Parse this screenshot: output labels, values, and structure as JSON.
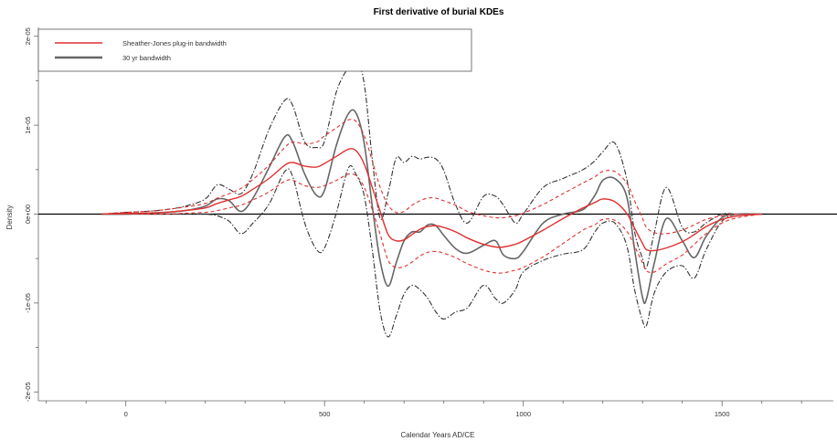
{
  "chart_data": {
    "type": "line",
    "title": "First derivative of burial KDEs",
    "xlabel": "Calendar Years AD/CE",
    "ylabel": "Density",
    "xlim": [
      -220,
      1780
    ],
    "ylim": [
      -2.1e-05,
      2.1e-05
    ],
    "x_ticks": [
      0,
      500,
      1000,
      1500
    ],
    "x_tick_labels": [
      "0",
      "500",
      "1000",
      "1500"
    ],
    "y_ticks": [
      -2e-05,
      -1e-05,
      0,
      1e-05,
      2e-05
    ],
    "y_tick_labels": [
      "-2e-05",
      "-1e-05",
      "0e+00",
      "1e-05",
      "2e-05"
    ],
    "legend_position": "top-left",
    "legend": [
      {
        "label": "Sheather-Jones plug-in bandwidth",
        "color": "#e03030"
      },
      {
        "label": "30 yr bandwidth",
        "color": "#666666"
      }
    ],
    "x": [
      -60,
      0,
      50,
      100,
      150,
      200,
      230,
      260,
      290,
      320,
      360,
      400,
      420,
      450,
      480,
      500,
      530,
      560,
      580,
      600,
      620,
      640,
      660,
      680,
      700,
      720,
      740,
      760,
      780,
      800,
      830,
      860,
      900,
      930,
      950,
      980,
      1000,
      1050,
      1100,
      1150,
      1180,
      1200,
      1230,
      1260,
      1280,
      1300,
      1310,
      1330,
      1360,
      1400,
      1430,
      1460,
      1500,
      1540,
      1600
    ],
    "series": [
      {
        "name": "Sheather-Jones plug-in bandwidth",
        "color": "#e03030",
        "style": "solid",
        "y": [
          0,
          1e-07,
          1e-07,
          2e-07,
          4e-07,
          7e-07,
          1.2e-06,
          1.6e-06,
          2e-06,
          2.8e-06,
          4e-06,
          5.5e-06,
          5.8e-06,
          5.4e-06,
          5.3e-06,
          5.7e-06,
          6.5e-06,
          7.3e-06,
          7.1e-06,
          5.6e-06,
          3e-06,
          3e-07,
          -2.3e-06,
          -3e-06,
          -2.9e-06,
          -2.3e-06,
          -1.7e-06,
          -1.4e-06,
          -1.3e-06,
          -1.5e-06,
          -2e-06,
          -2.7e-06,
          -3.4e-06,
          -3.7e-06,
          -3.7e-06,
          -3.4e-06,
          -3e-06,
          -1.8e-06,
          -5e-07,
          7e-07,
          1.3e-06,
          1.7e-06,
          1.4e-06,
          1e-07,
          -1.6e-06,
          -3.3e-06,
          -4e-06,
          -4.1e-06,
          -3.8e-06,
          -3.1e-06,
          -2.3e-06,
          -1.4e-06,
          -6e-07,
          -2e-07,
          0
        ]
      },
      {
        "name": "SJ upper",
        "color": "#e03030",
        "style": "dashed",
        "y": [
          0,
          2e-07,
          3e-07,
          5e-07,
          8e-07,
          1.2e-06,
          1.8e-06,
          2.3e-06,
          2.9e-06,
          3.9e-06,
          5.5e-06,
          7.5e-06,
          8.1e-06,
          7.9e-06,
          8.1e-06,
          8.8e-06,
          9.7e-06,
          1.06e-05,
          1.04e-05,
          8.8e-06,
          6e-06,
          3e-06,
          1e-06,
          2e-07,
          3e-07,
          1e-06,
          1.5e-06,
          1.8e-06,
          1.8e-06,
          1.5e-06,
          1e-06,
          3e-07,
          -2e-07,
          -4e-07,
          -4e-07,
          -2e-07,
          1e-07,
          1.1e-06,
          2.3e-06,
          3.5e-06,
          4.2e-06,
          4.8e-06,
          4.8e-06,
          3.5e-06,
          1.5e-06,
          -5e-07,
          -1.5e-06,
          -2.1e-06,
          -2.2e-06,
          -1.8e-06,
          -1.2e-06,
          -6e-07,
          -2e-07,
          0,
          0
        ]
      },
      {
        "name": "SJ lower",
        "color": "#e03030",
        "style": "dashed",
        "y": [
          0,
          0,
          0,
          0,
          1e-07,
          2e-07,
          4e-07,
          7e-07,
          1e-06,
          1.6e-06,
          2.5e-06,
          3.7e-06,
          3.8e-06,
          3.2e-06,
          3e-06,
          3.2e-06,
          3.8e-06,
          4.5e-06,
          4.3e-06,
          3e-06,
          5e-07,
          -2.3e-06,
          -5.2e-06,
          -6e-06,
          -5.9e-06,
          -5.4e-06,
          -4.7e-06,
          -4.3e-06,
          -4.2e-06,
          -4.4e-06,
          -4.9e-06,
          -5.6e-06,
          -6.3e-06,
          -6.6e-06,
          -6.6e-06,
          -6.3e-06,
          -6e-06,
          -4.8e-06,
          -3.3e-06,
          -1.8e-06,
          -1.2e-06,
          -6e-07,
          -7e-07,
          -1.9e-06,
          -3.6e-06,
          -5.5e-06,
          -6.4e-06,
          -6.5e-06,
          -5.6e-06,
          -4.6e-06,
          -3.4e-06,
          -2.2e-06,
          -1e-06,
          -4e-07,
          0
        ]
      },
      {
        "name": "30 yr bandwidth",
        "color": "#666666",
        "style": "solid",
        "y": [
          0,
          0,
          1e-07,
          2e-07,
          4e-07,
          9e-07,
          1.7e-06,
          1.5e-06,
          3e-07,
          1.8e-06,
          5.2e-06,
          8.7e-06,
          8.1e-06,
          4.5e-06,
          2.1e-06,
          2.7e-06,
          7.8e-06,
          1.13e-05,
          1.13e-05,
          7.9e-06,
          9e-07,
          -5.3e-06,
          -8.1e-06,
          -5.5e-06,
          -3e-06,
          -2e-06,
          -2e-06,
          -1.2e-06,
          -1.3e-06,
          -2.4e-06,
          -3.9e-06,
          -4.4e-06,
          -3.5e-06,
          -3e-06,
          -4.6e-06,
          -5e-06,
          -4.2e-06,
          -1e-06,
          0,
          5e-07,
          2.1e-06,
          3.8e-06,
          4e-06,
          2e-06,
          -4e-06,
          -9.4e-06,
          -9.5e-06,
          -5.4e-06,
          -5e-07,
          -3e-06,
          -4.9e-06,
          -2.5e-06,
          -4e-07,
          0,
          0
        ]
      },
      {
        "name": "30 yr upper",
        "color": "#333333",
        "style": "dashdot",
        "y": [
          0,
          2e-07,
          3e-07,
          5e-07,
          9e-07,
          1.7e-06,
          3.3e-06,
          2.8e-06,
          2.3e-06,
          4.6e-06,
          9.5e-06,
          1.28e-05,
          1.22e-05,
          8.1e-06,
          7.5e-06,
          8.2e-06,
          1.38e-05,
          1.65e-05,
          1.74e-05,
          1.46e-05,
          6.2e-06,
          -5e-07,
          2.4e-06,
          6.3e-06,
          5.8e-06,
          6.5e-06,
          6.2e-06,
          6.4e-06,
          6.2e-06,
          4.9e-06,
          1e-06,
          -1e-06,
          2e-06,
          2e-06,
          1e-06,
          -1e-06,
          0,
          3e-06,
          4e-06,
          5e-06,
          6e-06,
          7e-06,
          8e-06,
          4e-06,
          -2e-06,
          -5e-06,
          -6e-06,
          -2e-06,
          3e-06,
          -1.5e-06,
          -2e-06,
          -1e-06,
          0,
          0,
          0
        ]
      },
      {
        "name": "30 yr lower",
        "color": "#333333",
        "style": "dashdot",
        "y": [
          0,
          0,
          0,
          0,
          0,
          0,
          -2e-07,
          -8e-07,
          -2.2e-06,
          -1e-06,
          1.1e-06,
          4.8e-06,
          4.2e-06,
          -1e-06,
          -4e-06,
          -3.8e-06,
          2e-07,
          5.2e-06,
          4.4e-06,
          2e-06,
          -4e-06,
          -1.1e-05,
          -1.38e-05,
          -1.15e-05,
          -9e-06,
          -8e-06,
          -8.5e-06,
          -9.5e-06,
          -1.1e-05,
          -1.18e-05,
          -1.1e-05,
          -1.05e-05,
          -8e-06,
          -9.5e-06,
          -1e-05,
          -8.5e-06,
          -6.5e-06,
          -5.2e-06,
          -4.5e-06,
          -4e-06,
          -2e-06,
          -1e-06,
          -1e-06,
          -3.5e-06,
          -8.5e-06,
          -1.2e-05,
          -1.25e-05,
          -8.8e-06,
          -6.5e-06,
          -5.8e-06,
          -7.2e-06,
          -4e-06,
          -8e-07,
          0,
          0
        ]
      }
    ]
  }
}
